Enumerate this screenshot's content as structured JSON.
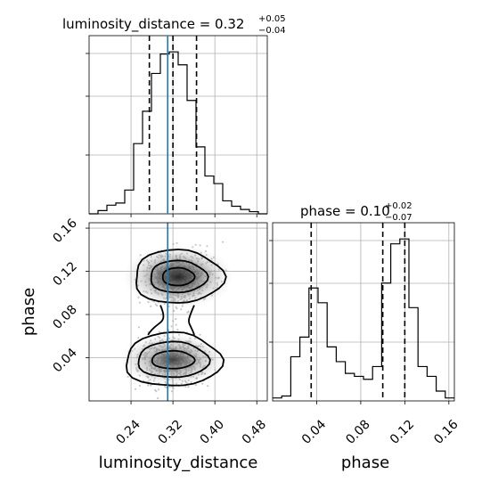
{
  "chart_data": {
    "type": "corner",
    "parameters": [
      "luminosity_distance",
      "phase"
    ],
    "truths": {
      "luminosity_distance": 0.31,
      "phase": null
    },
    "panels": [
      {
        "id": "hist_luminosity_distance",
        "type": "histogram",
        "title": {
          "base": "luminosity_distance = 0.32",
          "upper": "+0.05",
          "lower": "−0.04"
        },
        "xlim": [
          0.16,
          0.5
        ],
        "bin_edges": [
          0.16,
          0.177,
          0.194,
          0.211,
          0.228,
          0.245,
          0.262,
          0.279,
          0.296,
          0.313,
          0.33,
          0.347,
          0.364,
          0.381,
          0.398,
          0.415,
          0.432,
          0.449,
          0.466,
          0.483,
          0.5
        ],
        "counts": [
          0,
          3,
          8,
          10,
          22,
          65,
          95,
          130,
          148,
          150,
          138,
          105,
          62,
          35,
          28,
          12,
          7,
          4,
          2,
          0
        ],
        "quantiles": [
          0.275,
          0.32,
          0.365
        ],
        "ylabels_shown": false
      },
      {
        "id": "hist_phase",
        "type": "histogram",
        "title": {
          "base": "phase = 0.10",
          "upper": "+0.02",
          "lower": "−0.07"
        },
        "xlim": [
          0.0,
          0.165
        ],
        "bin_edges": [
          0.0,
          0.00825,
          0.0165,
          0.02475,
          0.033,
          0.04125,
          0.0495,
          0.05775,
          0.066,
          0.07425,
          0.0825,
          0.09075,
          0.099,
          0.10725,
          0.1155,
          0.12375,
          0.132,
          0.14025,
          0.1485,
          0.15675,
          0.165
        ],
        "counts": [
          3,
          5,
          45,
          65,
          115,
          100,
          55,
          40,
          28,
          25,
          22,
          35,
          120,
          160,
          165,
          95,
          35,
          25,
          10,
          3
        ],
        "quantiles": [
          0.035,
          0.1,
          0.12
        ],
        "ylabels_shown": false
      },
      {
        "id": "joint_luminosity_distance_phase",
        "type": "2d_density",
        "x": "luminosity_distance",
        "y": "phase",
        "xlim": [
          0.16,
          0.5
        ],
        "ylim": [
          0.0,
          0.165
        ],
        "modes": [
          {
            "x": 0.33,
            "y": 0.115
          },
          {
            "x": 0.32,
            "y": 0.038
          }
        ]
      }
    ],
    "x_ticks": {
      "luminosity_distance": [
        0.24,
        0.32,
        0.4,
        0.48
      ],
      "phase": [
        0.04,
        0.08,
        0.12,
        0.16
      ]
    },
    "x_tick_labels": {
      "luminosity_distance": [
        "0.24",
        "0.32",
        "0.40",
        "0.48"
      ],
      "phase": [
        "0.04",
        "0.08",
        "0.12",
        "0.16"
      ]
    },
    "y_ticks": {
      "phase": [
        0.04,
        0.08,
        0.12,
        0.16
      ]
    },
    "y_tick_labels": {
      "phase": [
        "0.04",
        "0.08",
        "0.12",
        "0.16"
      ]
    },
    "xlabel": {
      "left": "luminosity_distance",
      "right": "phase"
    },
    "ylabel": {
      "lower_left": "phase"
    },
    "grid": true,
    "colors": {
      "truth_line": "#1f77b4",
      "hist": "#000000",
      "density": "#000000"
    }
  }
}
